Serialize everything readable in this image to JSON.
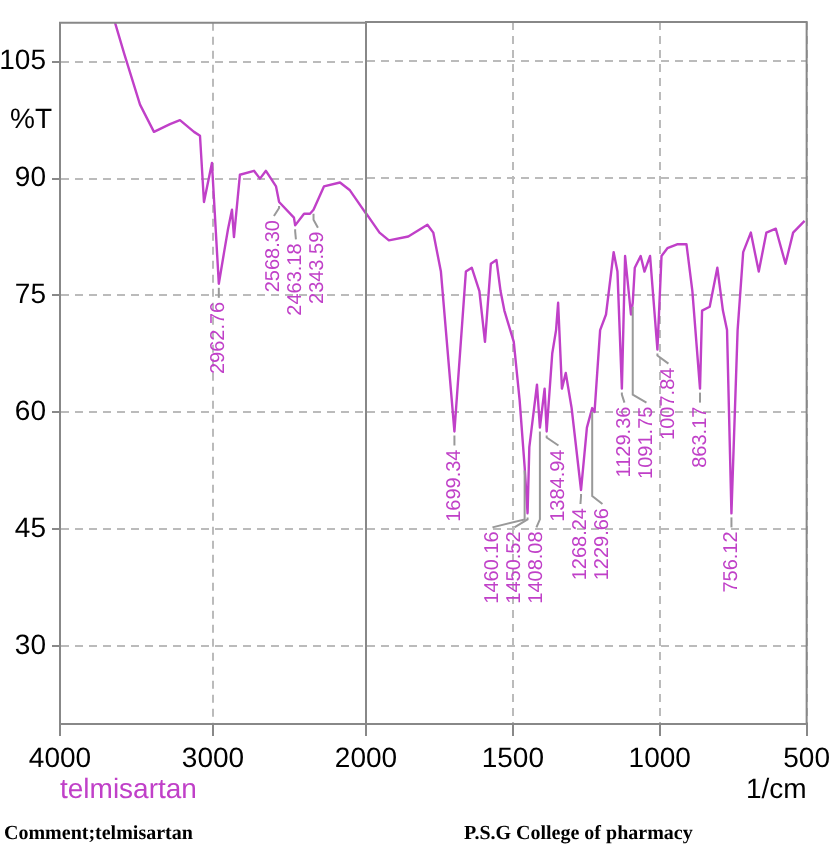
{
  "chart_data": [
    {
      "type": "line",
      "ylabel": "%T",
      "x": [
        3640,
        3580,
        3477,
        3386,
        3281,
        3216,
        3124,
        3085,
        3059,
        3007,
        2962,
        2928,
        2902,
        2876,
        2863,
        2824,
        2732,
        2693,
        2654,
        2588,
        2568,
        2471,
        2463,
        2405,
        2366,
        2343,
        2275,
        2170,
        2105,
        2000
      ],
      "series": [
        {
          "color": "#c040c8",
          "values": [
            110,
            106,
            99.5,
            96,
            97,
            97.5,
            96,
            95.5,
            87,
            92,
            76.5,
            80.5,
            83.5,
            86,
            82.5,
            90.5,
            91,
            90,
            91,
            89,
            87,
            85,
            84,
            85.5,
            85.5,
            86,
            89,
            89.5,
            88.5,
            85.5
          ]
        }
      ],
      "xlim": [
        4000,
        2000
      ],
      "xticks": [
        4000,
        3000,
        2000
      ],
      "ylim": [
        20,
        110
      ],
      "yticks": [
        30,
        45,
        60,
        75,
        90,
        105
      ],
      "grid": true,
      "line_style": "solid",
      "marker": "none",
      "annotations": [
        "telmisartan",
        "Comment;telmisartan",
        {
          "text": "2962.76",
          "x": 2962,
          "y": 76.5
        },
        {
          "text": "2568.30",
          "x": 2568,
          "y": 87
        },
        {
          "text": "2463.18",
          "x": 2463,
          "y": 84
        },
        {
          "text": "2343.59",
          "x": 2343,
          "y": 86
        }
      ]
    },
    {
      "type": "line",
      "xlabel": "1/cm",
      "tick_labels": "x",
      "x": [
        2000,
        1954,
        1922,
        1856,
        1791,
        1771,
        1745,
        1699,
        1660,
        1640,
        1614,
        1595,
        1575,
        1556,
        1542,
        1529,
        1497,
        1477,
        1460,
        1450,
        1444,
        1418,
        1408,
        1392,
        1385,
        1366,
        1353,
        1346,
        1333,
        1320,
        1300,
        1268,
        1248,
        1230,
        1222,
        1203,
        1183,
        1157,
        1144,
        1129,
        1118,
        1098,
        1092,
        1085,
        1065,
        1052,
        1033,
        1008,
        994,
        974,
        941,
        909,
        889,
        863,
        856,
        830,
        804,
        785,
        771,
        756,
        735,
        716,
        690,
        663,
        637,
        605,
        572,
        546,
        507
      ],
      "series": [
        {
          "color": "#c040c8",
          "values": [
            85.5,
            83,
            82,
            82.5,
            84,
            83,
            78,
            57.5,
            78,
            78.5,
            75.5,
            69,
            79,
            79.5,
            75.5,
            73,
            69,
            61.5,
            53,
            47,
            55.5,
            63.5,
            58,
            63,
            57.5,
            67.5,
            70.5,
            74,
            63,
            65,
            60.5,
            50,
            58,
            60.5,
            60,
            70.5,
            72.5,
            80.5,
            78,
            63,
            80,
            72.5,
            74,
            78.5,
            80,
            78,
            80,
            68,
            80,
            81,
            81.5,
            81.5,
            75.5,
            63,
            73,
            73.5,
            78.5,
            73,
            70.5,
            47,
            70.5,
            80.5,
            83,
            78,
            83,
            83.5,
            79,
            83,
            84.5
          ]
        }
      ],
      "xlim": [
        2000,
        500
      ],
      "xticks": [
        {
          "value": 2000,
          "label": null
        },
        1500,
        1000,
        500
      ],
      "ylim": [
        20,
        110
      ],
      "yticks": [
        {
          "value": 30,
          "label": null
        },
        {
          "value": 45,
          "label": null
        },
        {
          "value": 60,
          "label": null
        },
        {
          "value": 75,
          "label": null
        },
        {
          "value": 90,
          "label": null
        },
        {
          "value": 105,
          "label": null
        }
      ],
      "grid": true,
      "line_style": "solid",
      "marker": "none",
      "annotations": [
        "P.S.G College of pharmacy",
        {
          "text": "1699.34",
          "x": 1699,
          "y": 57.5
        },
        {
          "text": "1460.16",
          "x": 1460,
          "y": 53
        },
        {
          "text": "1450.52",
          "x": 1450,
          "y": 47
        },
        {
          "text": "1408.08",
          "x": 1408,
          "y": 58
        },
        {
          "text": "1384.94",
          "x": 1385,
          "y": 57.5
        },
        {
          "text": "1268.24",
          "x": 1268,
          "y": 50
        },
        {
          "text": "1229.66",
          "x": 1230,
          "y": 60.5
        },
        {
          "text": "1129.36",
          "x": 1129,
          "y": 63
        },
        {
          "text": "1091.75",
          "x": 1092,
          "y": 74
        },
        {
          "text": "1007.84",
          "x": 1008,
          "y": 68
        },
        {
          "text": "863.17",
          "x": 863,
          "y": 63
        },
        {
          "text": "756.12",
          "x": 756,
          "y": 47
        }
      ]
    }
  ]
}
